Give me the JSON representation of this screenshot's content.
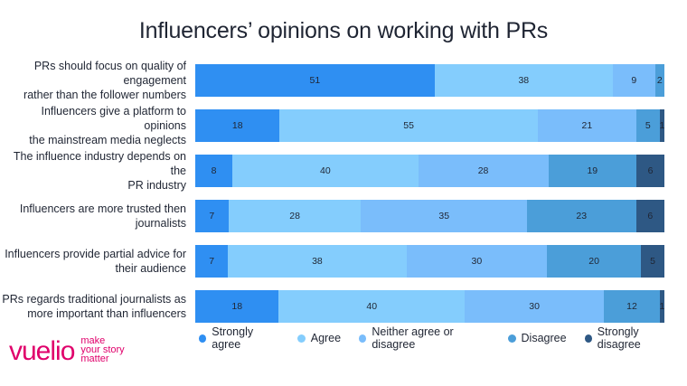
{
  "title": "Influencers’ opinions on working with PRs",
  "colors": [
    "#2f8ff2",
    "#84cdfd",
    "#7abdfb",
    "#4b9ed9",
    "#2e5884"
  ],
  "chart_data": {
    "type": "bar",
    "orientation": "horizontal",
    "stacked": true,
    "categories": [
      [
        "PRs should focus on quality of engagement",
        "rather than the follower numbers"
      ],
      [
        "Influencers give a platform to opinions",
        "the mainstream media neglects"
      ],
      [
        "The influence industry depends on the",
        "PR industry"
      ],
      [
        "Influencers are more trusted then",
        "journalists"
      ],
      [
        "Influencers provide partial advice for",
        "their audience"
      ],
      [
        "PRs regards traditional journalists as",
        "more important than influencers"
      ]
    ],
    "series": [
      {
        "name": "Strongly agree",
        "values": [
          51,
          18,
          8,
          7,
          7,
          18
        ]
      },
      {
        "name": "Agree",
        "values": [
          38,
          55,
          40,
          28,
          38,
          40
        ]
      },
      {
        "name": "Neither agree or disagree",
        "values": [
          9,
          21,
          28,
          35,
          30,
          30
        ]
      },
      {
        "name": "Disagree",
        "values": [
          2,
          5,
          19,
          23,
          20,
          12
        ]
      },
      {
        "name": "Strongly disagree",
        "values": [
          0,
          1,
          6,
          6,
          5,
          1
        ]
      }
    ],
    "legend_position": "bottom",
    "grid": false
  },
  "logo": {
    "word": "vuelio",
    "tagline": [
      "make",
      "your story",
      "matter"
    ]
  }
}
